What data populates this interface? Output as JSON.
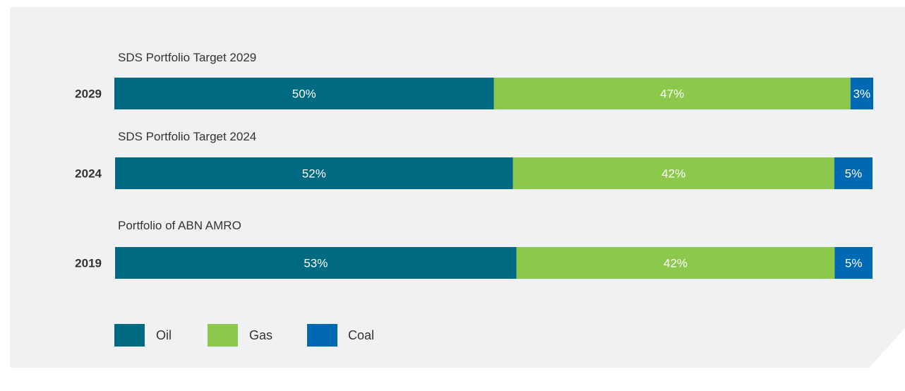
{
  "colors": {
    "panel_bg": "#f0f1f2",
    "Oil": "#006a82",
    "Gas": "#8cc84b",
    "Coal": "#0069b4",
    "bar_text": "#ffffff",
    "label_text": "#333333"
  },
  "chart_data": {
    "type": "bar",
    "orientation": "horizontal",
    "stacked": true,
    "unit": "%",
    "categories": [
      "2029",
      "2024",
      "2019"
    ],
    "row_captions": [
      "SDS Portfolio Target 2029",
      "SDS Portfolio Target 2024",
      "Portfolio of ABN AMRO"
    ],
    "series": [
      {
        "name": "Oil",
        "values": [
          50,
          52,
          53
        ],
        "labels": [
          "50%",
          "52%",
          "53%"
        ]
      },
      {
        "name": "Gas",
        "values": [
          47,
          42,
          42
        ],
        "labels": [
          "47%",
          "42%",
          "42%"
        ]
      },
      {
        "name": "Coal",
        "values": [
          3,
          5,
          5
        ],
        "labels": [
          "3%",
          "5%",
          "5%"
        ]
      }
    ],
    "legend": {
      "position": "bottom-left",
      "entries": [
        "Oil",
        "Gas",
        "Coal"
      ]
    },
    "grid": false
  }
}
